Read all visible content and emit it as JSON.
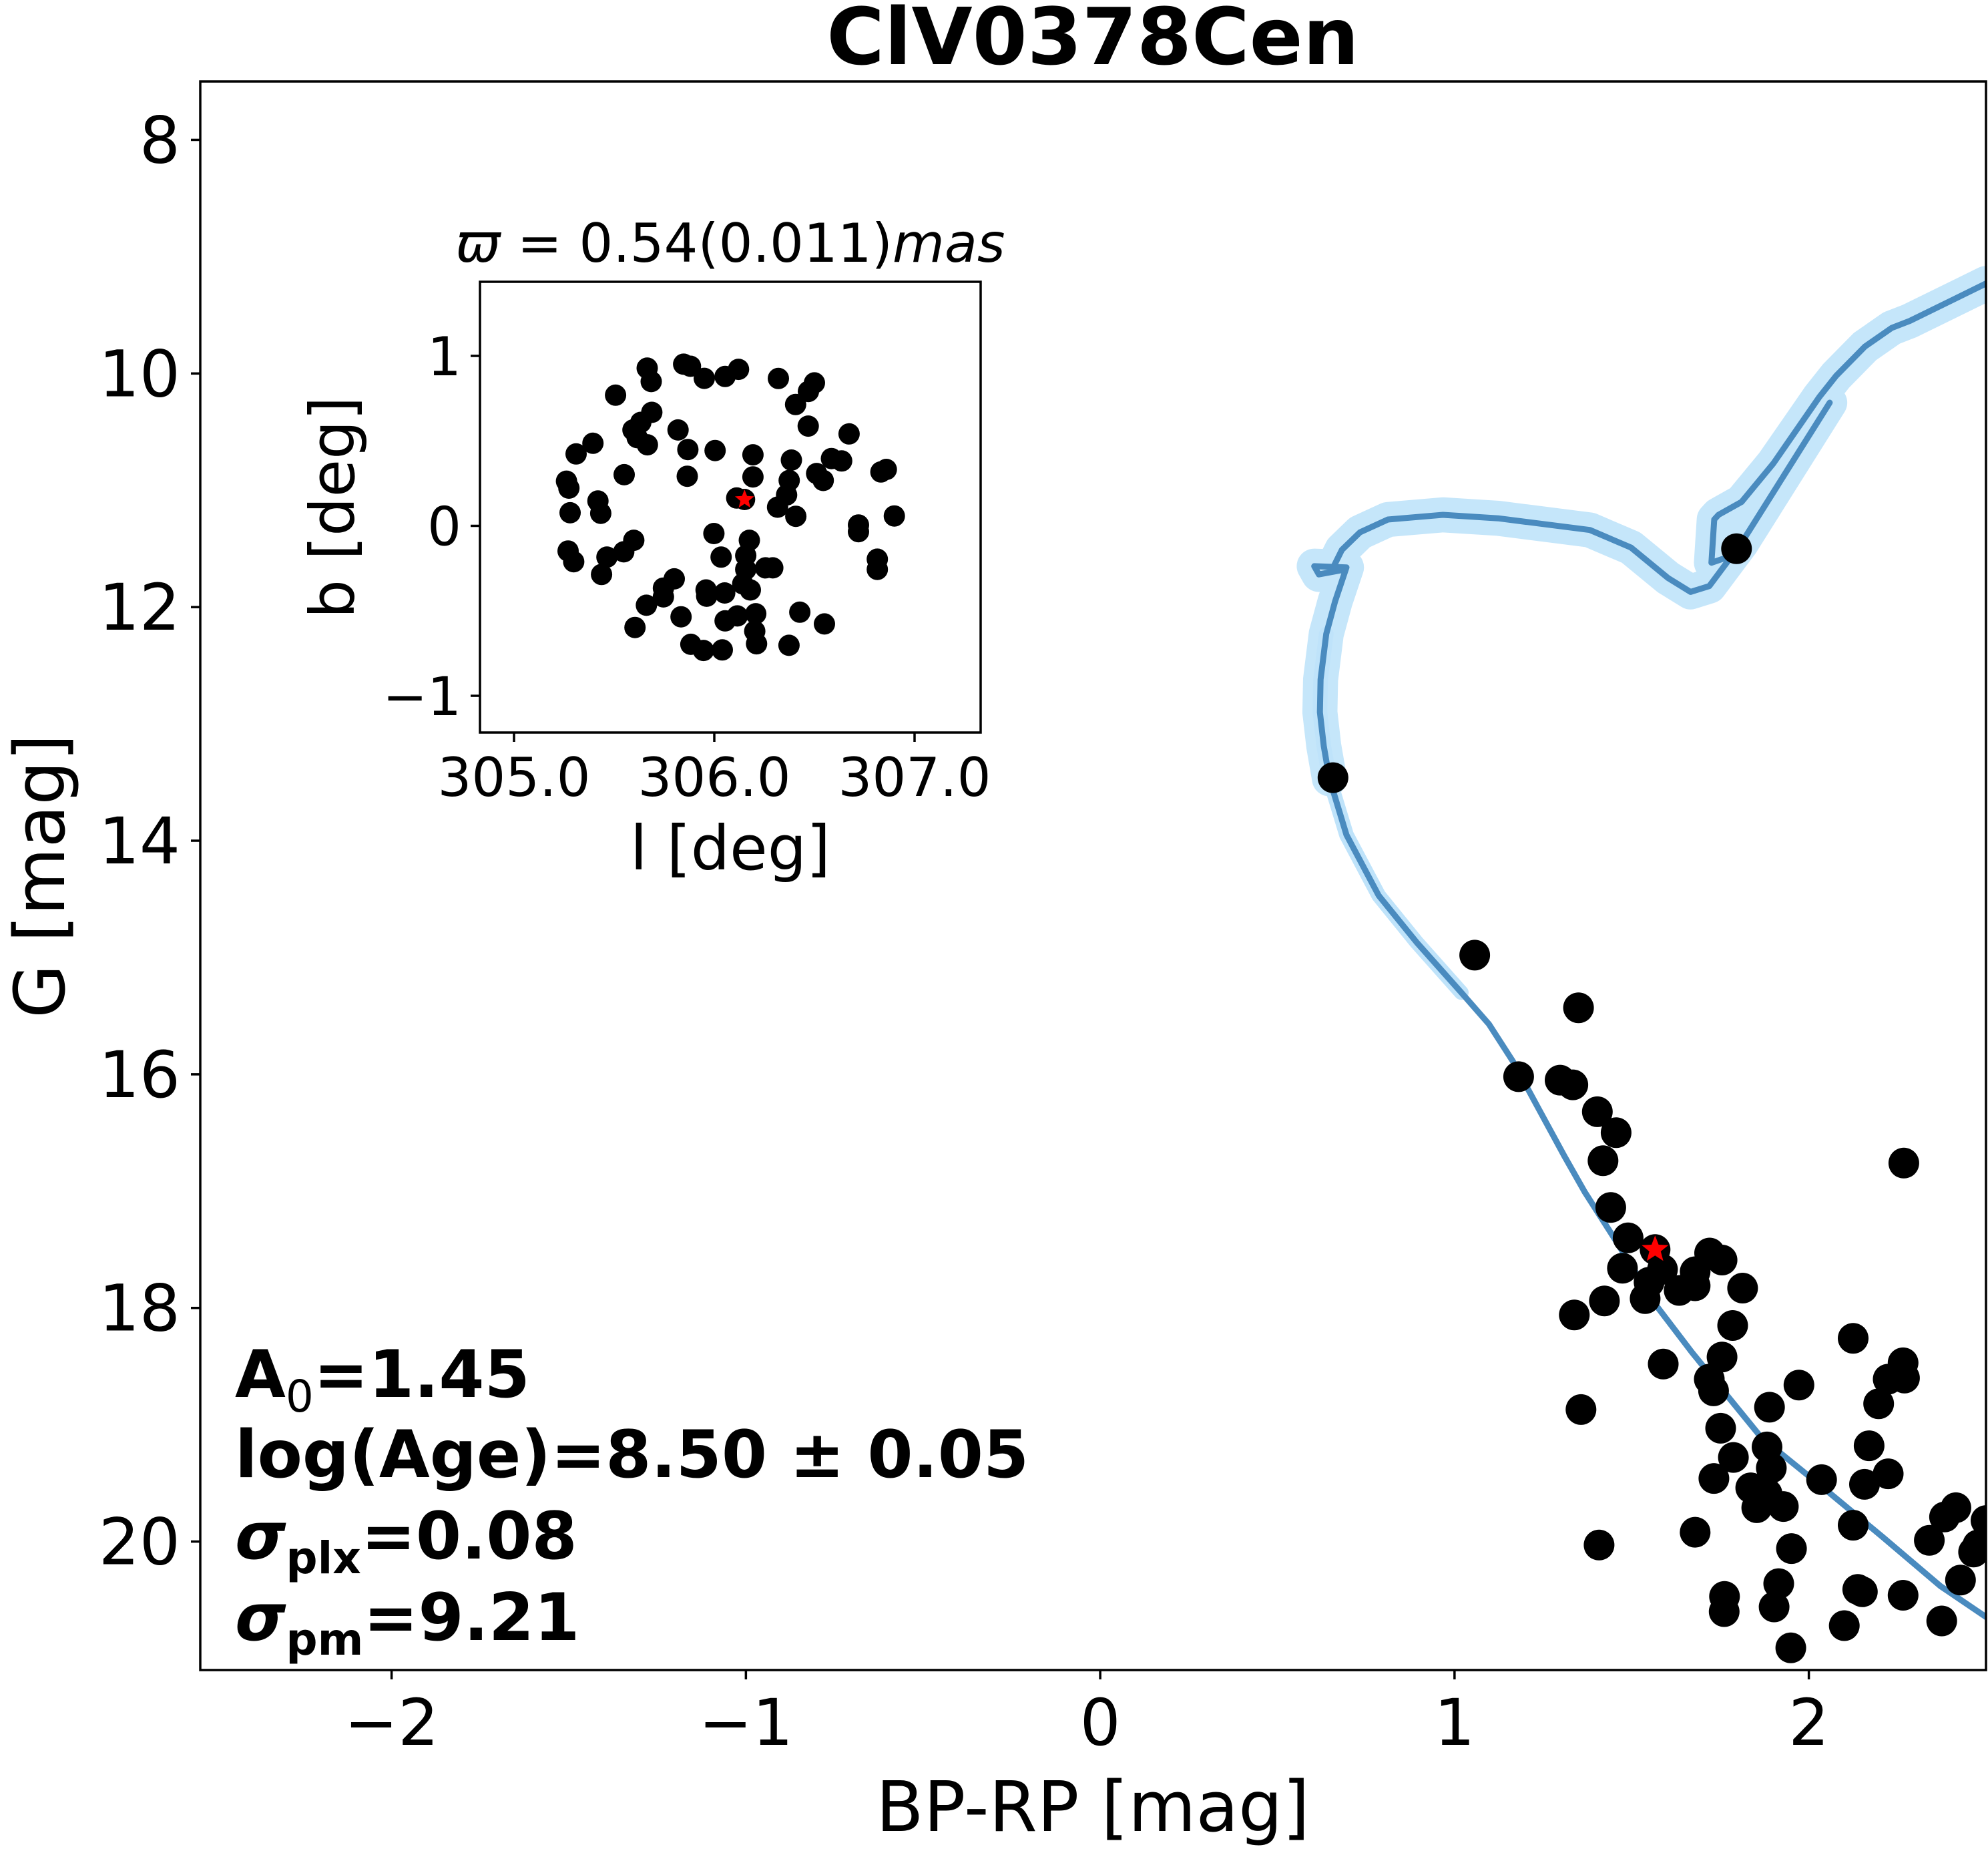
{
  "chart_data": [
    {
      "type": "scatter",
      "title": "ClV0378Cen",
      "xlabel": "BP-RP [mag]",
      "ylabel": "G [mag]",
      "xlim": [
        -2.54,
        2.5
      ],
      "ylim": [
        21.1,
        7.5
      ],
      "y_inverted": true,
      "grid": false,
      "xticks": [
        -2,
        -1,
        0,
        1,
        2
      ],
      "xtick_labels": [
        "−2",
        "−1",
        "0",
        "1",
        "2"
      ],
      "yticks": [
        8,
        10,
        12,
        14,
        16,
        18,
        20
      ],
      "ytick_labels": [
        "8",
        "10",
        "12",
        "14",
        "16",
        "18",
        "20"
      ],
      "series": [
        {
          "name": "members",
          "kind": "scatter",
          "color": "#000000",
          "points": [
            [
              1.796,
              11.5
            ],
            [
              0.657,
              13.46
            ],
            [
              1.057,
              14.98
            ],
            [
              1.35,
              15.43
            ],
            [
              1.181,
              16.02
            ],
            [
              1.298,
              16.05
            ],
            [
              1.334,
              16.09
            ],
            [
              1.403,
              16.32
            ],
            [
              1.456,
              16.5
            ],
            [
              1.419,
              16.74
            ],
            [
              2.268,
              16.76
            ],
            [
              1.441,
              17.14
            ],
            [
              1.49,
              17.4
            ],
            [
              1.72,
              17.53
            ],
            [
              1.755,
              17.59
            ],
            [
              1.474,
              17.66
            ],
            [
              1.587,
              17.67
            ],
            [
              1.679,
              17.69
            ],
            [
              1.549,
              17.78
            ],
            [
              1.634,
              17.85
            ],
            [
              1.679,
              17.81
            ],
            [
              1.813,
              17.83
            ],
            [
              1.538,
              17.92
            ],
            [
              1.423,
              17.94
            ],
            [
              1.338,
              18.06
            ],
            [
              1.785,
              18.15
            ],
            [
              1.755,
              18.42
            ],
            [
              1.589,
              18.48
            ],
            [
              2.125,
              18.26
            ],
            [
              2.266,
              18.47
            ],
            [
              2.224,
              18.61
            ],
            [
              2.27,
              18.6
            ],
            [
              2.197,
              18.82
            ],
            [
              1.719,
              18.61
            ],
            [
              1.731,
              18.71
            ],
            [
              1.972,
              18.66
            ],
            [
              1.889,
              18.85
            ],
            [
              1.357,
              18.87
            ],
            [
              1.751,
              19.03
            ],
            [
              1.882,
              19.19
            ],
            [
              1.894,
              19.37
            ],
            [
              1.787,
              19.28
            ],
            [
              1.732,
              19.46
            ],
            [
              1.836,
              19.54
            ],
            [
              1.882,
              19.59
            ],
            [
              1.853,
              19.71
            ],
            [
              1.928,
              19.7
            ],
            [
              2.036,
              19.47
            ],
            [
              2.17,
              19.18
            ],
            [
              2.157,
              19.51
            ],
            [
              2.224,
              19.42
            ],
            [
              2.125,
              19.86
            ],
            [
              2.415,
              19.71
            ],
            [
              2.383,
              19.79
            ],
            [
              2.34,
              19.99
            ],
            [
              2.5,
              19.82
            ],
            [
              2.477,
              20.03
            ],
            [
              2.465,
              20.09
            ],
            [
              2.428,
              20.33
            ],
            [
              1.679,
              19.92
            ],
            [
              1.408,
              20.03
            ],
            [
              1.951,
              20.06
            ],
            [
              1.915,
              20.36
            ],
            [
              1.762,
              20.47
            ],
            [
              1.761,
              20.6
            ],
            [
              1.902,
              20.56
            ],
            [
              2.138,
              20.41
            ],
            [
              2.151,
              20.43
            ],
            [
              2.266,
              20.46
            ],
            [
              2.1,
              20.72
            ],
            [
              2.375,
              20.68
            ],
            [
              1.949,
              20.91
            ]
          ]
        },
        {
          "name": "highlighted-star",
          "kind": "scatter",
          "marker": "star",
          "color": "#ff0000",
          "points": [
            [
              1.566,
              17.5
            ]
          ]
        },
        {
          "name": "isochrone",
          "kind": "line",
          "color": "#4a8bbf",
          "band_color": "#bfe3fa",
          "band_halfwidth_mag": 0.15,
          "points": [
            [
              2.5,
              9.23
            ],
            [
              2.285,
              9.55
            ],
            [
              2.234,
              9.61
            ],
            [
              2.158,
              9.77
            ],
            [
              2.077,
              10.02
            ],
            [
              2.03,
              10.2
            ],
            [
              1.9,
              10.77
            ],
            [
              1.81,
              11.1
            ],
            [
              1.745,
              11.21
            ],
            [
              1.733,
              11.25
            ],
            [
              1.725,
              11.62
            ],
            [
              1.783,
              11.56
            ],
            [
              1.81,
              11.45
            ],
            [
              2.059,
              10.25
            ],
            [
              1.81,
              11.45
            ],
            [
              1.719,
              11.82
            ],
            [
              1.666,
              11.87
            ],
            [
              1.602,
              11.75
            ],
            [
              1.498,
              11.49
            ],
            [
              1.382,
              11.34
            ],
            [
              1.123,
              11.24
            ],
            [
              0.967,
              11.21
            ],
            [
              0.812,
              11.25
            ],
            [
              0.733,
              11.36
            ],
            [
              0.682,
              11.51
            ],
            [
              0.656,
              11.67
            ],
            [
              0.688,
              11.68
            ],
            [
              0.617,
              11.72
            ],
            [
              0.604,
              11.65
            ],
            [
              0.695,
              11.66
            ],
            [
              0.663,
              11.95
            ],
            [
              0.638,
              12.23
            ],
            [
              0.622,
              12.62
            ],
            [
              0.62,
              12.9
            ],
            [
              0.631,
              13.19
            ],
            [
              0.647,
              13.47
            ],
            [
              0.695,
              13.95
            ],
            [
              0.786,
              14.47
            ],
            [
              0.893,
              14.87
            ],
            [
              1.019,
              15.3
            ],
            [
              1.097,
              15.57
            ],
            [
              1.165,
              15.89
            ],
            [
              1.233,
              16.27
            ],
            [
              1.31,
              16.7
            ],
            [
              1.368,
              17.01
            ],
            [
              1.446,
              17.38
            ],
            [
              1.572,
              17.99
            ],
            [
              1.67,
              18.38
            ],
            [
              1.866,
              19.11
            ],
            [
              2.045,
              19.55
            ],
            [
              2.208,
              19.96
            ],
            [
              2.371,
              20.38
            ],
            [
              2.502,
              20.65
            ]
          ]
        }
      ],
      "annotations": {
        "a0": {
          "main": "A",
          "sub": "0",
          "rest": "=1.45"
        },
        "age": "log(Age)=8.50 ± 0.05",
        "sigma_plx": {
          "main": "σ",
          "sub": "plx",
          "rest": "=0.08"
        },
        "sigma_pm": {
          "main": "σ",
          "sub": "pm",
          "rest": "=9.21"
        }
      }
    },
    {
      "type": "scatter",
      "title": "ϖ = 0.54(0.011)mas",
      "title_parts": {
        "symbol": "ϖ",
        "eq": " = 0.54(0.011)",
        "unit": "mas"
      },
      "xlabel": "l [deg]",
      "ylabel": "b [deg]",
      "xlim": [
        304.83,
        307.33
      ],
      "ylim": [
        -1.216,
        1.436
      ],
      "xticks": [
        305.0,
        306.0,
        307.0
      ],
      "xtick_labels": [
        "305.0",
        "306.0",
        "307.0"
      ],
      "yticks": [
        -1,
        0,
        1
      ],
      "ytick_labels": [
        "−1",
        "0",
        "1"
      ],
      "series": [
        {
          "name": "members",
          "kind": "scatter",
          "color": "#000000",
          "points": [
            [
              305.665,
              0.928
            ],
            [
              305.685,
              0.849
            ],
            [
              305.847,
              0.951
            ],
            [
              305.881,
              0.939
            ],
            [
              305.95,
              0.868
            ],
            [
              306.054,
              0.879
            ],
            [
              306.121,
              0.921
            ],
            [
              306.32,
              0.867
            ],
            [
              306.5,
              0.841
            ],
            [
              306.47,
              0.791
            ],
            [
              306.406,
              0.714
            ],
            [
              305.507,
              0.769
            ],
            [
              305.688,
              0.668
            ],
            [
              305.633,
              0.609
            ],
            [
              305.594,
              0.564
            ],
            [
              305.615,
              0.519
            ],
            [
              305.666,
              0.477
            ],
            [
              305.819,
              0.564
            ],
            [
              305.868,
              0.449
            ],
            [
              306.004,
              0.443
            ],
            [
              305.394,
              0.486
            ],
            [
              305.31,
              0.423
            ],
            [
              305.55,
              0.301
            ],
            [
              305.865,
              0.292
            ],
            [
              306.193,
              0.418
            ],
            [
              306.193,
              0.288
            ],
            [
              306.469,
              0.587
            ],
            [
              306.673,
              0.541
            ],
            [
              306.385,
              0.387
            ],
            [
              306.585,
              0.396
            ],
            [
              306.636,
              0.382
            ],
            [
              306.511,
              0.308
            ],
            [
              306.544,
              0.267
            ],
            [
              306.832,
              0.317
            ],
            [
              306.859,
              0.332
            ],
            [
              306.374,
              0.267
            ],
            [
              306.361,
              0.182
            ],
            [
              306.316,
              0.11
            ],
            [
              306.407,
              0.056
            ],
            [
              306.112,
              0.164
            ],
            [
              305.262,
              0.263
            ],
            [
              305.274,
              0.222
            ],
            [
              305.28,
              0.077
            ],
            [
              305.419,
              0.146
            ],
            [
              305.433,
              0.074
            ],
            [
              306.72,
              0.005
            ],
            [
              306.72,
              -0.034
            ],
            [
              306.899,
              0.058
            ],
            [
              305.27,
              -0.148
            ],
            [
              305.298,
              -0.211
            ],
            [
              305.598,
              -0.085
            ],
            [
              305.548,
              -0.153
            ],
            [
              305.464,
              -0.184
            ],
            [
              305.437,
              -0.286
            ],
            [
              305.998,
              -0.045
            ],
            [
              306.034,
              -0.184
            ],
            [
              306.175,
              -0.085
            ],
            [
              306.157,
              -0.175
            ],
            [
              306.157,
              -0.256
            ],
            [
              306.256,
              -0.247
            ],
            [
              306.292,
              -0.247
            ],
            [
              306.814,
              -0.196
            ],
            [
              306.814,
              -0.256
            ],
            [
              305.8,
              -0.312
            ],
            [
              305.746,
              -0.366
            ],
            [
              305.746,
              -0.418
            ],
            [
              305.661,
              -0.467
            ],
            [
              305.959,
              -0.377
            ],
            [
              305.962,
              -0.414
            ],
            [
              306.052,
              -0.395
            ],
            [
              306.142,
              -0.341
            ],
            [
              306.18,
              -0.377
            ],
            [
              305.834,
              -0.535
            ],
            [
              305.604,
              -0.598
            ],
            [
              306.054,
              -0.559
            ],
            [
              306.115,
              -0.53
            ],
            [
              306.207,
              -0.517
            ],
            [
              306.202,
              -0.62
            ],
            [
              306.211,
              -0.694
            ],
            [
              306.427,
              -0.508
            ],
            [
              306.55,
              -0.577
            ],
            [
              306.373,
              -0.703
            ],
            [
              305.883,
              -0.697
            ],
            [
              305.946,
              -0.733
            ],
            [
              306.04,
              -0.73
            ]
          ]
        },
        {
          "name": "highlighted-star",
          "kind": "scatter",
          "marker": "star",
          "color": "#ff0000",
          "points": [
            [
              306.151,
              0.155
            ]
          ]
        }
      ]
    }
  ]
}
